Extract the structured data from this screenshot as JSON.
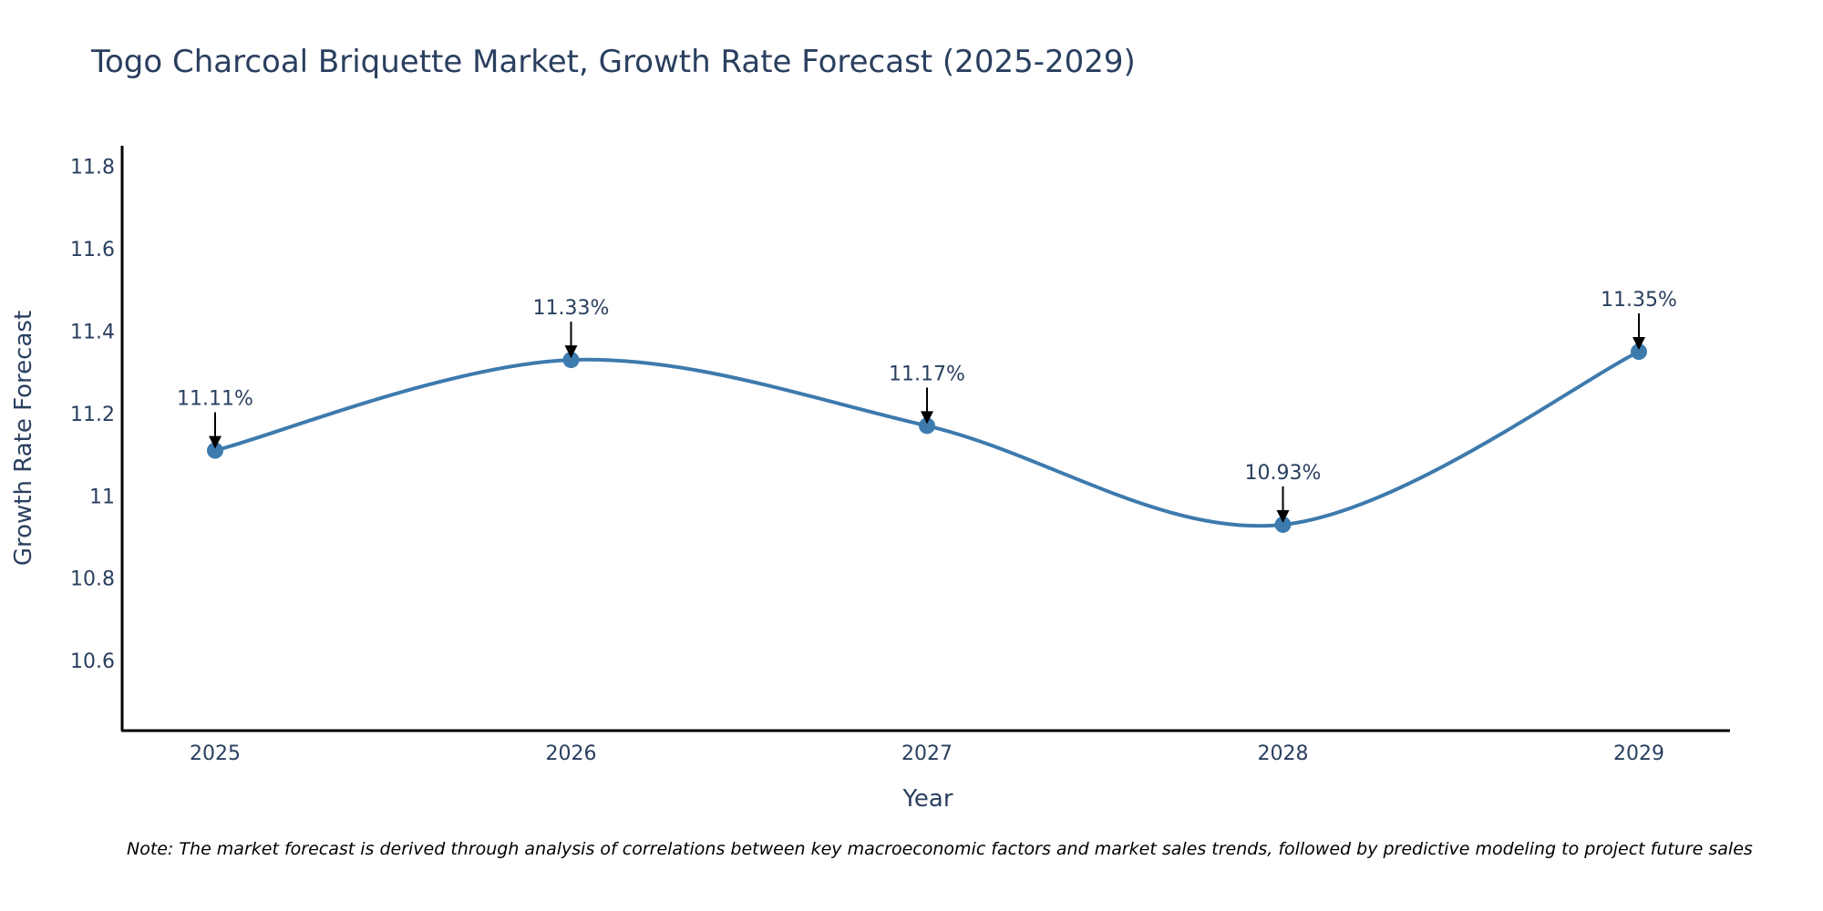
{
  "chart_data": {
    "type": "line",
    "title": "Togo Charcoal Briquette Market, Growth Rate Forecast (2025-2029)",
    "xlabel": "Year",
    "ylabel": "Growth Rate Forecast",
    "categories": [
      "2025",
      "2026",
      "2027",
      "2028",
      "2029"
    ],
    "series": [
      {
        "name": "Growth Rate Forecast",
        "values": [
          11.11,
          11.33,
          11.17,
          10.93,
          11.35
        ],
        "color": "#3d7aad",
        "line_shape": "spline",
        "markers": true
      }
    ],
    "annotations": [
      "11.11%",
      "11.33%",
      "11.17%",
      "10.93%",
      "11.35%"
    ],
    "y_ticks": [
      10.6,
      10.8,
      11,
      11.2,
      11.4,
      11.6,
      11.8
    ],
    "y_tick_labels": [
      "10.6",
      "10.8",
      "11",
      "11.2",
      "11.4",
      "11.6",
      "11.8"
    ],
    "ylim": [
      10.43,
      11.85
    ],
    "grid": false,
    "legend": "none",
    "note": "Note: The market forecast is derived through analysis of correlations between key macroeconomic factors and market sales trends, followed by predictive modeling to project future sales"
  }
}
